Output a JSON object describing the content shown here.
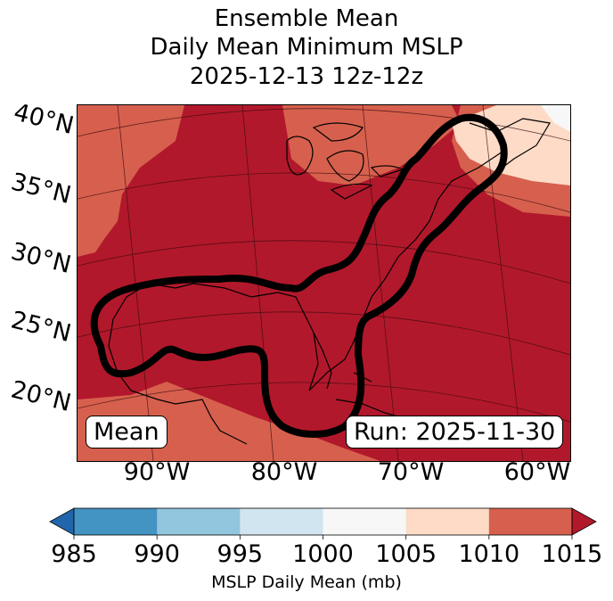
{
  "title": {
    "line1": "Ensemble Mean",
    "line2": "Daily Mean Minimum MSLP",
    "line3": "2025-12-13 12z-12z"
  },
  "map": {
    "lat_labels": [
      "40°N",
      "35°N",
      "30°N",
      "25°N",
      "20°N"
    ],
    "lon_labels": [
      "90°W",
      "80°W",
      "70°W",
      "60°W"
    ],
    "mean_label": "Mean",
    "run_label": "Run: 2025-11-30",
    "outline_color": "#000000"
  },
  "colorbar": {
    "label": "MSLP Daily Mean (mb)",
    "ticks": [
      "985",
      "990",
      "995",
      "1000",
      "1005",
      "1010",
      "1015"
    ],
    "colors": [
      "#2166ac",
      "#4393c3",
      "#92c5de",
      "#d1e5f0",
      "#f7f7f7",
      "#fddbc7",
      "#d6604d",
      "#b2182b"
    ],
    "extend": "both"
  },
  "field_colors": {
    "above_1015": "#b2182b",
    "band_1010_1015": "#d6604d",
    "band_1005_1010": "#fddbc7",
    "band_1000_1005": "#f7f7f7"
  }
}
